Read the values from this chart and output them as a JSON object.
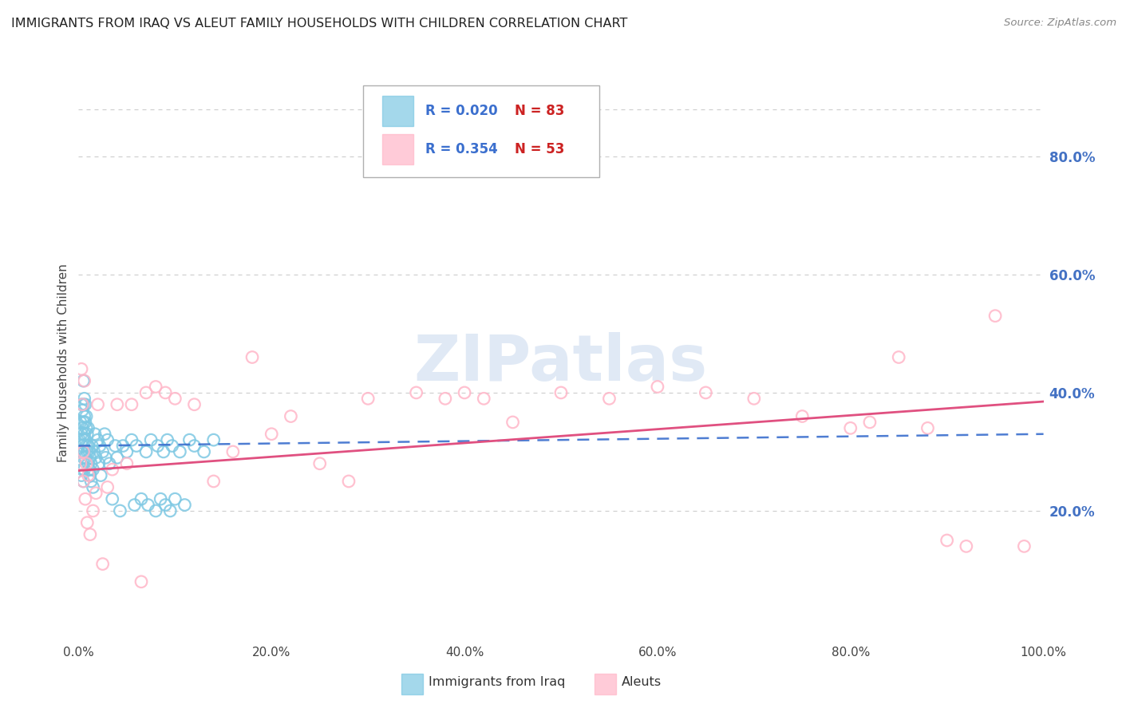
{
  "title": "IMMIGRANTS FROM IRAQ VS ALEUT FAMILY HOUSEHOLDS WITH CHILDREN CORRELATION CHART",
  "source": "Source: ZipAtlas.com",
  "ylabel": "Family Households with Children",
  "legend_label1": "Immigrants from Iraq",
  "legend_label2": "Aleuts",
  "R1": "0.020",
  "N1": "83",
  "R2": "0.354",
  "N2": "53",
  "xlim": [
    0.0,
    1.0
  ],
  "ylim": [
    -0.02,
    0.92
  ],
  "xtick_labels": [
    "0.0%",
    "20.0%",
    "40.0%",
    "60.0%",
    "80.0%",
    "100.0%"
  ],
  "xtick_vals": [
    0.0,
    0.2,
    0.4,
    0.6,
    0.8,
    1.0
  ],
  "ytick_labels_right": [
    "20.0%",
    "40.0%",
    "60.0%",
    "80.0%"
  ],
  "ytick_vals_right": [
    0.2,
    0.4,
    0.6,
    0.8
  ],
  "color_blue": "#7ec8e3",
  "color_pink": "#ffb6c8",
  "color_blue_line": "#3b6fce",
  "color_pink_line": "#e05080",
  "color_ytick_right": "#4472c4",
  "watermark": "ZIPatlas",
  "background_color": "#ffffff",
  "grid_color": "#d0d0d0",
  "title_color": "#222222",
  "blue_x": [
    0.001,
    0.002,
    0.002,
    0.003,
    0.003,
    0.003,
    0.003,
    0.004,
    0.004,
    0.004,
    0.004,
    0.005,
    0.005,
    0.005,
    0.005,
    0.005,
    0.005,
    0.006,
    0.006,
    0.006,
    0.006,
    0.006,
    0.007,
    0.007,
    0.007,
    0.007,
    0.008,
    0.008,
    0.008,
    0.009,
    0.009,
    0.01,
    0.01,
    0.01,
    0.011,
    0.011,
    0.012,
    0.012,
    0.013,
    0.013,
    0.014,
    0.015,
    0.015,
    0.016,
    0.017,
    0.018,
    0.02,
    0.021,
    0.022,
    0.023,
    0.025,
    0.027,
    0.028,
    0.03,
    0.032,
    0.035,
    0.038,
    0.04,
    0.043,
    0.046,
    0.05,
    0.055,
    0.058,
    0.06,
    0.065,
    0.07,
    0.072,
    0.075,
    0.08,
    0.082,
    0.085,
    0.088,
    0.09,
    0.092,
    0.095,
    0.097,
    0.1,
    0.105,
    0.11,
    0.115,
    0.12,
    0.13,
    0.14
  ],
  "blue_y": [
    0.32,
    0.28,
    0.35,
    0.26,
    0.3,
    0.33,
    0.38,
    0.27,
    0.31,
    0.34,
    0.37,
    0.25,
    0.29,
    0.32,
    0.35,
    0.38,
    0.42,
    0.27,
    0.3,
    0.33,
    0.36,
    0.39,
    0.29,
    0.32,
    0.35,
    0.38,
    0.31,
    0.34,
    0.36,
    0.3,
    0.33,
    0.28,
    0.31,
    0.34,
    0.27,
    0.3,
    0.26,
    0.29,
    0.25,
    0.28,
    0.31,
    0.24,
    0.27,
    0.3,
    0.33,
    0.29,
    0.32,
    0.28,
    0.31,
    0.26,
    0.3,
    0.33,
    0.29,
    0.32,
    0.28,
    0.22,
    0.31,
    0.29,
    0.2,
    0.31,
    0.3,
    0.32,
    0.21,
    0.31,
    0.22,
    0.3,
    0.21,
    0.32,
    0.2,
    0.31,
    0.22,
    0.3,
    0.21,
    0.32,
    0.2,
    0.31,
    0.22,
    0.3,
    0.21,
    0.32,
    0.31,
    0.3,
    0.32
  ],
  "pink_x": [
    0.002,
    0.003,
    0.004,
    0.005,
    0.005,
    0.006,
    0.007,
    0.008,
    0.009,
    0.01,
    0.012,
    0.015,
    0.018,
    0.02,
    0.025,
    0.03,
    0.035,
    0.04,
    0.05,
    0.055,
    0.065,
    0.07,
    0.08,
    0.09,
    0.1,
    0.12,
    0.14,
    0.16,
    0.18,
    0.2,
    0.22,
    0.25,
    0.28,
    0.3,
    0.35,
    0.38,
    0.4,
    0.42,
    0.45,
    0.5,
    0.55,
    0.6,
    0.65,
    0.7,
    0.75,
    0.8,
    0.82,
    0.85,
    0.88,
    0.9,
    0.92,
    0.95,
    0.98
  ],
  "pink_y": [
    0.28,
    0.44,
    0.38,
    0.25,
    0.3,
    0.42,
    0.22,
    0.28,
    0.18,
    0.26,
    0.16,
    0.2,
    0.23,
    0.38,
    0.11,
    0.24,
    0.27,
    0.38,
    0.28,
    0.38,
    0.08,
    0.4,
    0.41,
    0.4,
    0.39,
    0.38,
    0.25,
    0.3,
    0.46,
    0.33,
    0.36,
    0.28,
    0.25,
    0.39,
    0.4,
    0.39,
    0.4,
    0.39,
    0.35,
    0.4,
    0.39,
    0.41,
    0.4,
    0.39,
    0.36,
    0.34,
    0.35,
    0.46,
    0.34,
    0.15,
    0.14,
    0.53,
    0.14
  ]
}
